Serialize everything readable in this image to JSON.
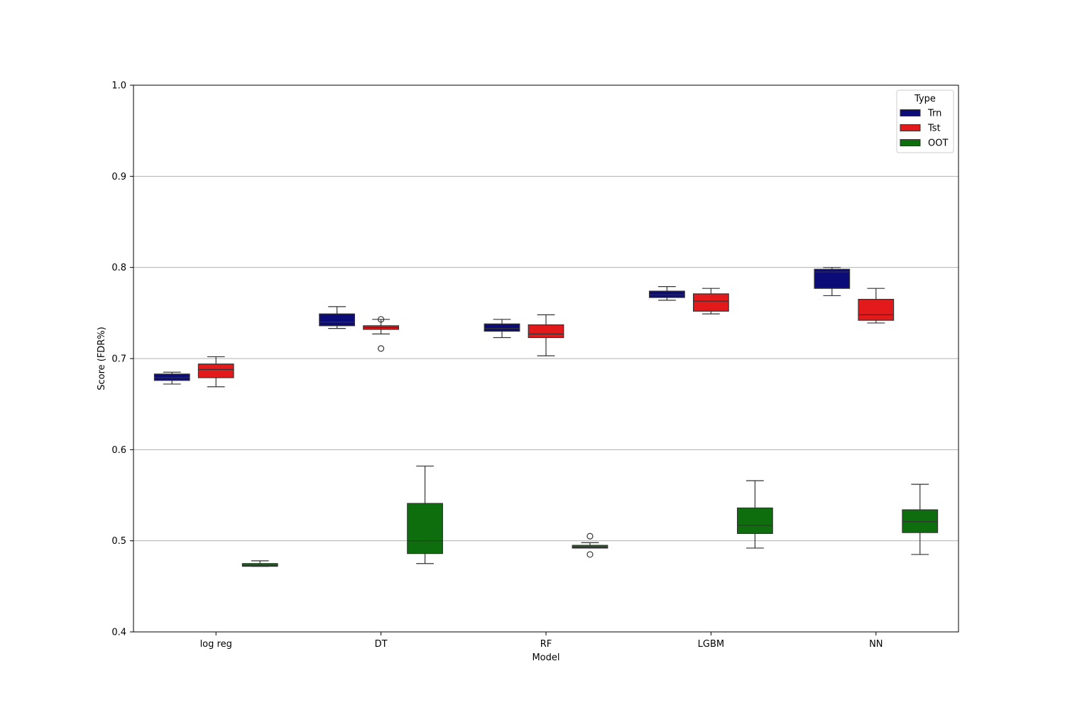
{
  "chart_data": {
    "type": "box",
    "title": "",
    "xlabel": "Model",
    "ylabel": "Score (FDR%)",
    "ylim": [
      0.4,
      1.0
    ],
    "yticks": [
      0.4,
      0.5,
      0.6,
      0.7,
      0.8,
      0.9,
      1.0
    ],
    "ytick_labels": [
      "0.4",
      "0.5",
      "0.6",
      "0.7",
      "0.8",
      "0.9",
      "1.0"
    ],
    "grid": "horizontal",
    "categories": [
      "log reg",
      "DT",
      "RF",
      "LGBM",
      "NN"
    ],
    "legend": {
      "title": "Type",
      "position": "top-right"
    },
    "series": [
      {
        "name": "Trn",
        "color": "#0c0c78",
        "boxes": [
          {
            "whisker_low": 0.672,
            "q1": 0.676,
            "median": 0.679,
            "q3": 0.683,
            "whisker_high": 0.685,
            "outliers": []
          },
          {
            "whisker_low": 0.733,
            "q1": 0.736,
            "median": 0.74,
            "q3": 0.749,
            "whisker_high": 0.757,
            "outliers": []
          },
          {
            "whisker_low": 0.723,
            "q1": 0.73,
            "median": 0.733,
            "q3": 0.738,
            "whisker_high": 0.743,
            "outliers": []
          },
          {
            "whisker_low": 0.764,
            "q1": 0.767,
            "median": 0.77,
            "q3": 0.774,
            "whisker_high": 0.779,
            "outliers": []
          },
          {
            "whisker_low": 0.769,
            "q1": 0.777,
            "median": 0.795,
            "q3": 0.798,
            "whisker_high": 0.8,
            "outliers": []
          }
        ]
      },
      {
        "name": "Tst",
        "color": "#e31a1c",
        "boxes": [
          {
            "whisker_low": 0.669,
            "q1": 0.679,
            "median": 0.688,
            "q3": 0.694,
            "whisker_high": 0.702,
            "outliers": []
          },
          {
            "whisker_low": 0.727,
            "q1": 0.732,
            "median": 0.734,
            "q3": 0.736,
            "whisker_high": 0.743,
            "outliers": [
              0.743,
              0.711
            ]
          },
          {
            "whisker_low": 0.703,
            "q1": 0.723,
            "median": 0.727,
            "q3": 0.737,
            "whisker_high": 0.748,
            "outliers": []
          },
          {
            "whisker_low": 0.749,
            "q1": 0.752,
            "median": 0.763,
            "q3": 0.771,
            "whisker_high": 0.777,
            "outliers": []
          },
          {
            "whisker_low": 0.739,
            "q1": 0.742,
            "median": 0.748,
            "q3": 0.765,
            "whisker_high": 0.777,
            "outliers": []
          }
        ]
      },
      {
        "name": "OOT",
        "color": "#0e6e0e",
        "boxes": [
          {
            "whisker_low": 0.472,
            "q1": 0.472,
            "median": 0.473,
            "q3": 0.475,
            "whisker_high": 0.478,
            "outliers": []
          },
          {
            "whisker_low": 0.475,
            "q1": 0.486,
            "median": 0.5,
            "q3": 0.541,
            "whisker_high": 0.582,
            "outliers": []
          },
          {
            "whisker_low": 0.492,
            "q1": 0.492,
            "median": 0.493,
            "q3": 0.495,
            "whisker_high": 0.498,
            "outliers": [
              0.505,
              0.485
            ]
          },
          {
            "whisker_low": 0.492,
            "q1": 0.508,
            "median": 0.517,
            "q3": 0.536,
            "whisker_high": 0.566,
            "outliers": []
          },
          {
            "whisker_low": 0.485,
            "q1": 0.509,
            "median": 0.521,
            "q3": 0.534,
            "whisker_high": 0.562,
            "outliers": []
          }
        ]
      }
    ]
  }
}
